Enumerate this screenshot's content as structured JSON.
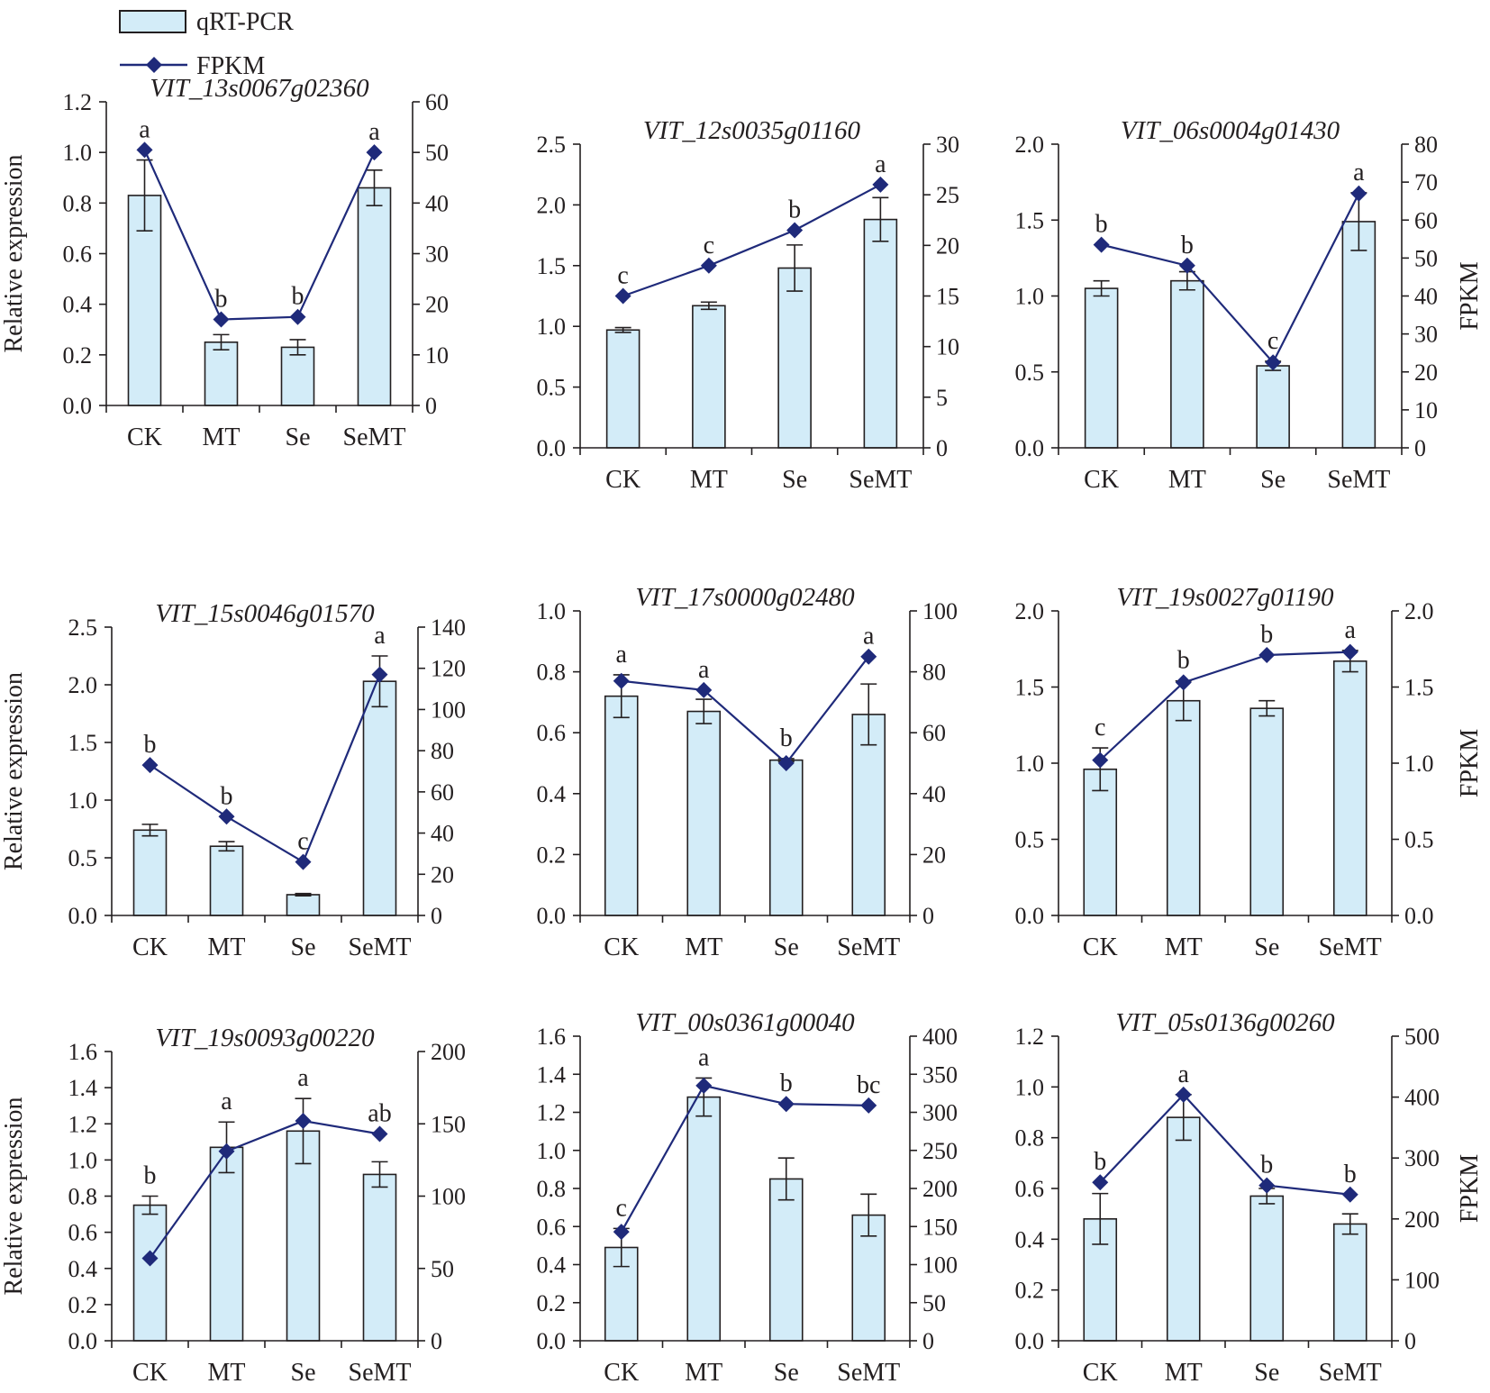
{
  "legend": {
    "bar_label": "qRT-PCR",
    "line_label": "FPKM"
  },
  "colors": {
    "bar_fill": "#d3ecf8",
    "bar_stroke": "#231f20",
    "line": "#1f2a7a",
    "marker": "#1f2a7a",
    "axis": "#231f20",
    "text": "#231f20"
  },
  "chart_data": [
    {
      "type": "bar+line",
      "title": "VIT_13s0067g02360",
      "categories": [
        "CK",
        "MT",
        "Se",
        "SeMT"
      ],
      "ylabel": "Relative expression",
      "y2label": "",
      "ylim": [
        0,
        1.2
      ],
      "yticks": [
        "0.0",
        "0.2",
        "0.4",
        "0.6",
        "0.8",
        "1.0",
        "1.2"
      ],
      "y2lim": [
        0,
        60
      ],
      "y2ticks": [
        "0",
        "10",
        "20",
        "30",
        "40",
        "50",
        "60"
      ],
      "bars": [
        0.83,
        0.25,
        0.23,
        0.86
      ],
      "errors": [
        0.14,
        0.03,
        0.03,
        0.07
      ],
      "fpkm": [
        50.5,
        17,
        17.5,
        50
      ],
      "letters": [
        "a",
        "b",
        "b",
        "a"
      ]
    },
    {
      "type": "bar+line",
      "title": "VIT_12s0035g01160",
      "categories": [
        "CK",
        "MT",
        "Se",
        "SeMT"
      ],
      "ylabel": "",
      "y2label": "",
      "ylim": [
        0,
        2.5
      ],
      "yticks": [
        "0.0",
        "0.5",
        "1.0",
        "1.5",
        "2.0",
        "2.5"
      ],
      "y2lim": [
        0,
        30
      ],
      "y2ticks": [
        "0",
        "5",
        "10",
        "15",
        "20",
        "25",
        "30"
      ],
      "bars": [
        0.97,
        1.17,
        1.48,
        1.88
      ],
      "errors": [
        0.02,
        0.03,
        0.19,
        0.18
      ],
      "fpkm": [
        15,
        18,
        21.5,
        26
      ],
      "letters": [
        "c",
        "c",
        "b",
        "a"
      ]
    },
    {
      "type": "bar+line",
      "title": "VIT_06s0004g01430",
      "categories": [
        "CK",
        "MT",
        "Se",
        "SeMT"
      ],
      "ylabel": "",
      "y2label": "FPKM",
      "ylim": [
        0,
        2.0
      ],
      "yticks": [
        "0.0",
        "0.5",
        "1.0",
        "1.5",
        "2.0"
      ],
      "y2lim": [
        0,
        80
      ],
      "y2ticks": [
        "0",
        "10",
        "20",
        "30",
        "40",
        "50",
        "60",
        "70",
        "80"
      ],
      "bars": [
        1.05,
        1.1,
        0.54,
        1.49
      ],
      "errors": [
        0.05,
        0.06,
        0.03,
        0.19
      ],
      "fpkm": [
        53.5,
        48,
        22.5,
        67
      ],
      "letters": [
        "b",
        "b",
        "c",
        "a"
      ]
    },
    {
      "type": "bar+line",
      "title": "VIT_15s0046g01570",
      "categories": [
        "CK",
        "MT",
        "Se",
        "SeMT"
      ],
      "ylabel": "Relative expression",
      "y2label": "",
      "ylim": [
        0,
        2.5
      ],
      "yticks": [
        "0.0",
        "0.5",
        "1.0",
        "1.5",
        "2.0",
        "2.5"
      ],
      "y2lim": [
        0,
        140
      ],
      "y2ticks": [
        "0",
        "20",
        "40",
        "60",
        "80",
        "100",
        "120",
        "140"
      ],
      "bars": [
        0.74,
        0.6,
        0.18,
        2.03
      ],
      "errors": [
        0.05,
        0.04,
        0.01,
        0.22
      ],
      "fpkm": [
        73,
        48,
        26,
        117
      ],
      "letters": [
        "b",
        "b",
        "c",
        "a"
      ]
    },
    {
      "type": "bar+line",
      "title": "VIT_17s0000g02480",
      "categories": [
        "CK",
        "MT",
        "Se",
        "SeMT"
      ],
      "ylabel": "",
      "y2label": "",
      "ylim": [
        0,
        1.0
      ],
      "yticks": [
        "0.0",
        "0.2",
        "0.4",
        "0.6",
        "0.8",
        "1.0"
      ],
      "y2lim": [
        0,
        100
      ],
      "y2ticks": [
        "0",
        "20",
        "40",
        "60",
        "80",
        "100"
      ],
      "bars": [
        0.72,
        0.67,
        0.51,
        0.66
      ],
      "errors": [
        0.07,
        0.04,
        0.005,
        0.1
      ],
      "fpkm": [
        77,
        74,
        50,
        85
      ],
      "letters": [
        "a",
        "a",
        "b",
        "a"
      ]
    },
    {
      "type": "bar+line",
      "title": "VIT_19s0027g01190",
      "categories": [
        "CK",
        "MT",
        "Se",
        "SeMT"
      ],
      "ylabel": "",
      "y2label": "FPKM",
      "ylim": [
        0,
        2.0
      ],
      "yticks": [
        "0.0",
        "0.5",
        "1.0",
        "1.5",
        "2.0"
      ],
      "y2lim": [
        0,
        2.0
      ],
      "y2ticks": [
        "0.0",
        "0.5",
        "1.0",
        "1.5",
        "2.0"
      ],
      "bars": [
        0.96,
        1.41,
        1.36,
        1.67
      ],
      "errors": [
        0.14,
        0.13,
        0.05,
        0.07
      ],
      "fpkm": [
        1.02,
        1.53,
        1.71,
        1.73
      ],
      "letters": [
        "c",
        "b",
        "b",
        "a"
      ]
    },
    {
      "type": "bar+line",
      "title": "VIT_19s0093g00220",
      "categories": [
        "CK",
        "MT",
        "Se",
        "SeMT"
      ],
      "ylabel": "Relative expression",
      "y2label": "",
      "ylim": [
        0,
        1.6
      ],
      "yticks": [
        "0.0",
        "0.2",
        "0.4",
        "0.6",
        "0.8",
        "1.0",
        "1.2",
        "1.4",
        "1.6"
      ],
      "y2lim": [
        0,
        200
      ],
      "y2ticks": [
        "0",
        "50",
        "100",
        "150",
        "200"
      ],
      "bars": [
        0.75,
        1.07,
        1.16,
        0.92
      ],
      "errors": [
        0.05,
        0.14,
        0.18,
        0.07
      ],
      "fpkm": [
        57,
        131,
        152,
        143
      ],
      "letters": [
        "b",
        "a",
        "a",
        "ab"
      ]
    },
    {
      "type": "bar+line",
      "title": "VIT_00s0361g00040",
      "categories": [
        "CK",
        "MT",
        "Se",
        "SeMT"
      ],
      "ylabel": "",
      "y2label": "",
      "ylim": [
        0,
        1.6
      ],
      "yticks": [
        "0.0",
        "0.2",
        "0.4",
        "0.6",
        "0.8",
        "1.0",
        "1.2",
        "1.4",
        "1.6"
      ],
      "y2lim": [
        0,
        400
      ],
      "y2ticks": [
        "0",
        "50",
        "100",
        "150",
        "200",
        "250",
        "300",
        "350",
        "400"
      ],
      "bars": [
        0.49,
        1.28,
        0.85,
        0.66
      ],
      "errors": [
        0.1,
        0.1,
        0.11,
        0.11
      ],
      "fpkm": [
        143,
        335,
        311,
        309
      ],
      "letters": [
        "c",
        "a",
        "b",
        "bc"
      ]
    },
    {
      "type": "bar+line",
      "title": "VIT_05s0136g00260",
      "categories": [
        "CK",
        "MT",
        "Se",
        "SeMT"
      ],
      "ylabel": "",
      "y2label": "FPKM",
      "ylim": [
        0,
        1.2
      ],
      "yticks": [
        "0.0",
        "0.2",
        "0.4",
        "0.6",
        "0.8",
        "1.0",
        "1.2"
      ],
      "y2lim": [
        0,
        500
      ],
      "y2ticks": [
        "0",
        "100",
        "200",
        "300",
        "400",
        "500"
      ],
      "bars": [
        0.48,
        0.88,
        0.57,
        0.46
      ],
      "errors": [
        0.1,
        0.09,
        0.03,
        0.04
      ],
      "fpkm": [
        260,
        404,
        255,
        240
      ],
      "letters": [
        "b",
        "a",
        "b",
        "b"
      ]
    }
  ]
}
